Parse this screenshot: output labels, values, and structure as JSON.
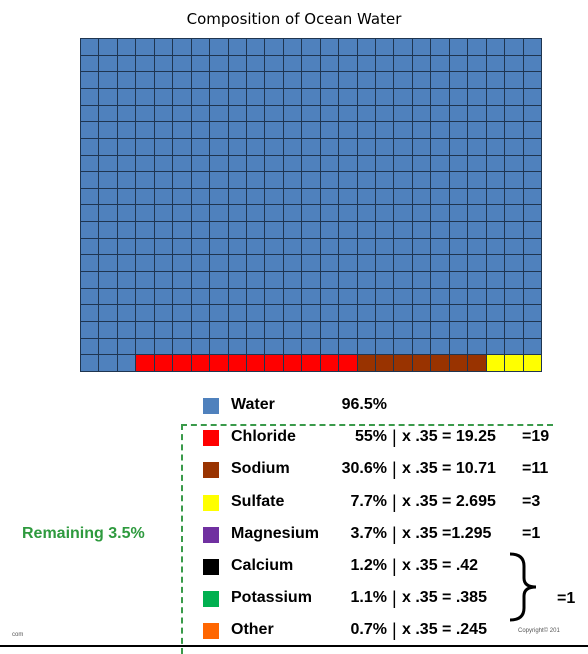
{
  "chart_data": {
    "type": "waffle",
    "title": "Composition of Ocean Water",
    "grid": {
      "columns": 25,
      "rows": 20
    },
    "bottom_row_cells": [
      {
        "component": "Water",
        "count": 3
      },
      {
        "component": "Chloride",
        "count": 12
      },
      {
        "component": "Sodium",
        "count": 7
      },
      {
        "component": "Sulfate",
        "count": 3
      },
      {
        "component": "Magnesium",
        "count": 1
      },
      {
        "component": "Calcium, Potassium, Other",
        "count": 1
      }
    ],
    "legend": [
      {
        "name": "Water",
        "percent": "96.5%",
        "color": "#4f81bd",
        "calc": "",
        "result": ""
      },
      {
        "name": "Chloride",
        "percent": "55%",
        "color": "#ff0000",
        "calc": "x .35 = 19.25",
        "result": "=19"
      },
      {
        "name": "Sodium",
        "percent": "30.6%",
        "color": "#993300",
        "calc": "x .35 = 10.71",
        "result": "=11"
      },
      {
        "name": "Sulfate",
        "percent": "7.7%",
        "color": "#ffff00",
        "calc": "x .35 =  2.695",
        "result": "=3"
      },
      {
        "name": "Magnesium",
        "percent": "3.7%",
        "color": "#7030a0",
        "calc": "x .35 =1.295",
        "result": "=1"
      },
      {
        "name": "Calcium",
        "percent": "1.2%",
        "color": "#000000",
        "calc": "x .35 =  .42",
        "result": ""
      },
      {
        "name": "Potassium",
        "percent": "1.1%",
        "color": "#00b050",
        "calc": "x .35 = .385",
        "result": ""
      },
      {
        "name": "Other",
        "percent": "0.7%",
        "color": "#ff6600",
        "calc": "x .35 = .245",
        "result": ""
      }
    ],
    "grouped_result": "=1",
    "remaining_label": "Remaining 3.5%"
  },
  "cell_colors": {
    "Water": "#4f81bd",
    "Chloride": "#ff0000",
    "Sodium": "#993300",
    "Sulfate": "#ffff00",
    "Magnesium": "#7030a0",
    "Calcium, Potassium, Other": "#ffffff"
  },
  "footer": {
    "left_tag": "com",
    "copyright": "Copyright© 201"
  }
}
